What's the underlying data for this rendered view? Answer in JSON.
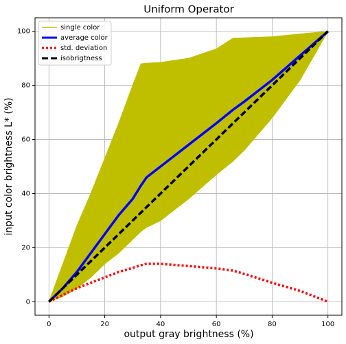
{
  "chart_data": {
    "type": "line",
    "title": "Uniform Operator",
    "x_label": "output gray brightness (%)",
    "y_label": "input color brightness L* (%)",
    "x": [
      0,
      5,
      10,
      15,
      20,
      25,
      30,
      33,
      35,
      40,
      50,
      60,
      66,
      70,
      80,
      90,
      100
    ],
    "series": [
      {
        "name": "single color",
        "color": "#bfbf00",
        "style": "band",
        "values": [
          0,
          14,
          28,
          40,
          53,
          66,
          80,
          88,
          88.2,
          88.5,
          90,
          93.5,
          97.5,
          97.6,
          98,
          99,
          100
        ],
        "lower": [
          0,
          2,
          5,
          9,
          14,
          18,
          23,
          26,
          27.5,
          30,
          38,
          47,
          52,
          56,
          68,
          82,
          100
        ]
      },
      {
        "name": "average color",
        "color": "#0000ff",
        "style": "solid",
        "values": [
          0,
          5,
          11,
          18,
          25,
          32,
          38,
          43,
          46,
          50,
          58,
          66,
          71,
          74,
          82,
          91,
          100
        ]
      },
      {
        "name": "std. deviation",
        "color": "#ff0000",
        "style": "dotted",
        "values": [
          0,
          2.5,
          5,
          7,
          9,
          11,
          12.5,
          13.5,
          14,
          14,
          13.2,
          12.3,
          11.5,
          10.3,
          7,
          4,
          0
        ]
      },
      {
        "name": "isobrigtness",
        "color": "#000000",
        "style": "dashed",
        "values": [
          0,
          5,
          10,
          15,
          20,
          25,
          30,
          33,
          35,
          40,
          50,
          60,
          66,
          70,
          80,
          90,
          100
        ]
      }
    ],
    "xlim": [
      -5,
      105
    ],
    "ylim": [
      -5,
      105
    ],
    "xticks": [
      0,
      20,
      40,
      60,
      80,
      100
    ],
    "yticks": [
      0,
      20,
      40,
      60,
      80,
      100
    ],
    "grid": true,
    "legend": "upper-left"
  }
}
